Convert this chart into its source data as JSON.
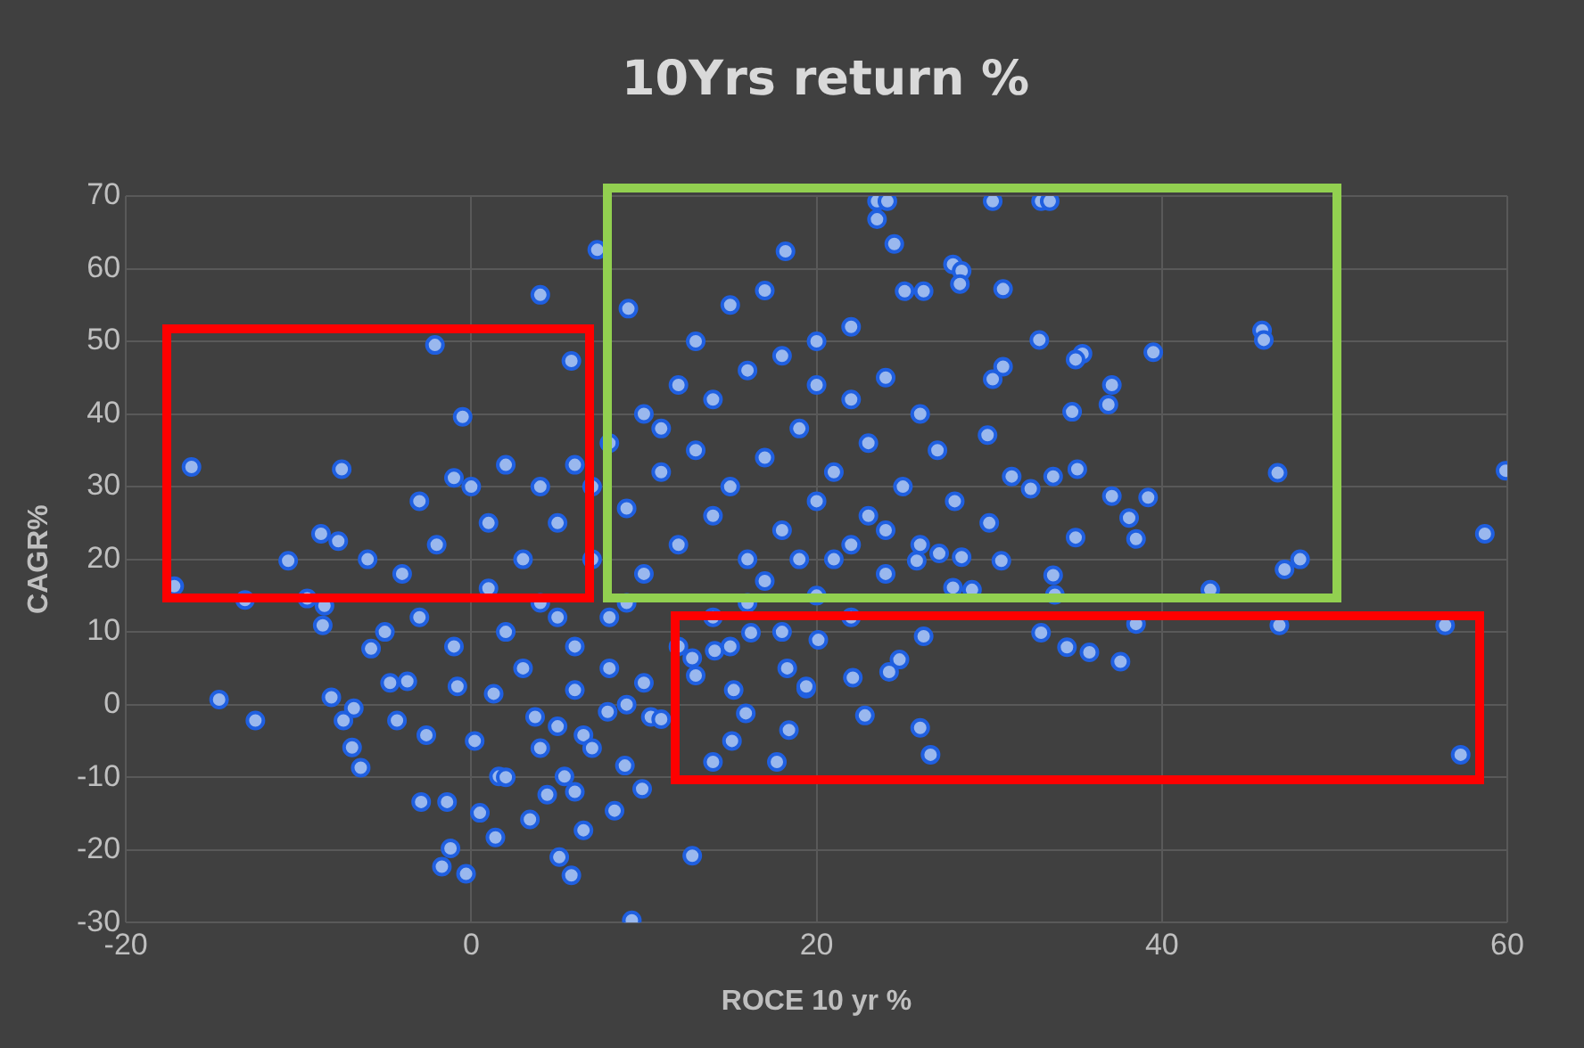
{
  "chart_data": {
    "type": "scatter",
    "title": "10Yrs return %",
    "xlabel": "ROCE 10 yr %",
    "ylabel": "CAGR%",
    "xlim": [
      -20,
      60
    ],
    "ylim": [
      -30,
      70
    ],
    "xticks": [
      -20,
      0,
      20,
      40,
      60
    ],
    "yticks": [
      -30,
      -20,
      -10,
      0,
      10,
      20,
      30,
      40,
      50,
      60,
      70
    ],
    "grid": true,
    "marker": "circle",
    "color": "#9ab8ee",
    "x": [
      -16.2,
      -17.2,
      -7.5,
      -14.6,
      -12.5,
      -10.6,
      -8.7,
      -7.7,
      -8.5,
      -2.1,
      -0.5,
      -1.0,
      4.0,
      5.8,
      7.3,
      9.1,
      18.2,
      23.5,
      24.1,
      30.2,
      33.0,
      33.5,
      23.5,
      24.5,
      27.9,
      28.4,
      30.8,
      26.2,
      32.9,
      35.4,
      39.5,
      45.8,
      45.9,
      36.9,
      37.1,
      34.8,
      30.2,
      30.8,
      59.9,
      58.7,
      46.7,
      35.0,
      35.1,
      33.7,
      38.1,
      38.5,
      39.2,
      37.1,
      48.0,
      47.1,
      31.3,
      32.4,
      29.9,
      35.0,
      28.3,
      25.1,
      57.3,
      56.4,
      46.8,
      42.8,
      38.5,
      33.0,
      34.5,
      35.8,
      37.6,
      33.7,
      33.8,
      26.2,
      24.8,
      24.2,
      22.1,
      22.8,
      26.0,
      26.6,
      19.4,
      18.4,
      27.9,
      29.0,
      30.7,
      28.4,
      27.1,
      25.8,
      -13.1,
      -9.5,
      -8.6,
      -8.1,
      -6.8,
      -7.4,
      -6.9,
      -6.4,
      -5.8,
      -4.7,
      -4.3,
      -2.9,
      -1.7,
      -1.2,
      -0.3,
      -1.4,
      1.4,
      0.5,
      3.4,
      5.1,
      5.8,
      9.3,
      12.8,
      6.5,
      8.3,
      9.9,
      8.9,
      4.4,
      5.4,
      1.6,
      0.2,
      -2.6,
      -3.7,
      -0.8,
      1.3,
      3.7,
      6.5,
      7.9,
      10.4,
      14.0,
      17.7,
      15.1,
      15.9,
      15.2,
      19.4,
      12.8,
      14.1,
      18.3,
      20.1,
      16.2,
      2,
      4,
      6,
      8,
      10,
      12,
      14,
      16,
      18,
      20,
      22,
      24,
      3,
      5,
      7,
      9,
      11,
      13,
      15,
      17,
      19,
      21,
      23,
      25,
      6,
      8,
      10,
      12,
      14,
      16,
      18,
      20,
      22,
      24,
      1,
      3,
      5,
      7,
      9,
      11,
      13,
      15,
      17,
      19,
      10,
      12,
      14,
      16,
      18,
      20,
      22,
      13,
      15,
      17,
      11,
      8,
      6,
      4,
      2,
      0,
      -2,
      -4,
      -3,
      -1,
      1,
      26,
      27,
      28,
      30,
      26,
      24,
      22,
      20,
      21,
      23,
      9,
      7,
      5,
      -5,
      -6,
      -3,
      2,
      4,
      6
    ],
    "values": [
      32.7,
      16.3,
      32.4,
      0.7,
      -2.2,
      19.8,
      23.5,
      22.5,
      13.6,
      49.5,
      39.6,
      31.2,
      56.4,
      47.3,
      62.6,
      54.5,
      62.4,
      69.3,
      69.3,
      69.3,
      69.3,
      69.3,
      66.8,
      63.4,
      60.6,
      59.7,
      57.2,
      56.9,
      50.2,
      48.3,
      48.5,
      51.5,
      50.2,
      41.3,
      44.0,
      40.3,
      44.8,
      46.5,
      32.2,
      23.5,
      31.9,
      23.0,
      32.4,
      31.4,
      25.7,
      22.8,
      28.5,
      28.7,
      20.0,
      18.6,
      31.4,
      29.7,
      37.1,
      47.5,
      57.9,
      56.9,
      -6.9,
      10.9,
      10.9,
      15.8,
      11.1,
      9.9,
      7.9,
      7.2,
      5.9,
      17.8,
      15.1,
      9.4,
      6.2,
      4.5,
      3.7,
      -1.5,
      -3.2,
      -6.9,
      2.2,
      -3.5,
      16.1,
      15.8,
      19.8,
      20.3,
      20.8,
      19.8,
      14.4,
      14.6,
      10.9,
      1.0,
      -0.5,
      -2.2,
      -5.9,
      -8.7,
      7.7,
      3.0,
      -2.2,
      -13.4,
      -22.3,
      -19.8,
      -23.3,
      -13.4,
      -18.3,
      -14.9,
      -15.8,
      -21.0,
      -23.5,
      -29.7,
      -20.8,
      -17.3,
      -14.6,
      -11.6,
      -8.4,
      -12.4,
      -9.9,
      -9.9,
      -5.0,
      -4.2,
      3.2,
      2.5,
      1.5,
      -1.7,
      -4.2,
      -1.0,
      -1.7,
      -7.9,
      -7.9,
      -5.0,
      -1.2,
      2.0,
      2.5,
      6.4,
      7.4,
      5.0,
      8.9,
      9.9,
      10,
      14,
      8,
      12,
      18,
      22,
      26,
      20,
      24,
      28,
      22,
      18,
      20,
      25,
      30,
      27,
      32,
      35,
      30,
      34,
      38,
      32,
      36,
      30,
      2,
      5,
      3,
      8,
      12,
      14,
      10,
      15,
      12,
      24,
      16,
      5,
      -3,
      -6,
      0,
      -2,
      4,
      8,
      17,
      20,
      40,
      44,
      42,
      46,
      48,
      50,
      52,
      50,
      55,
      57,
      38,
      36,
      33,
      30,
      33,
      30,
      22,
      18,
      12,
      8,
      25,
      40,
      35,
      28,
      25,
      22,
      45,
      42,
      44,
      20,
      26,
      14,
      20,
      12,
      10,
      20,
      28,
      -10,
      -6,
      -12
    ]
  }
}
